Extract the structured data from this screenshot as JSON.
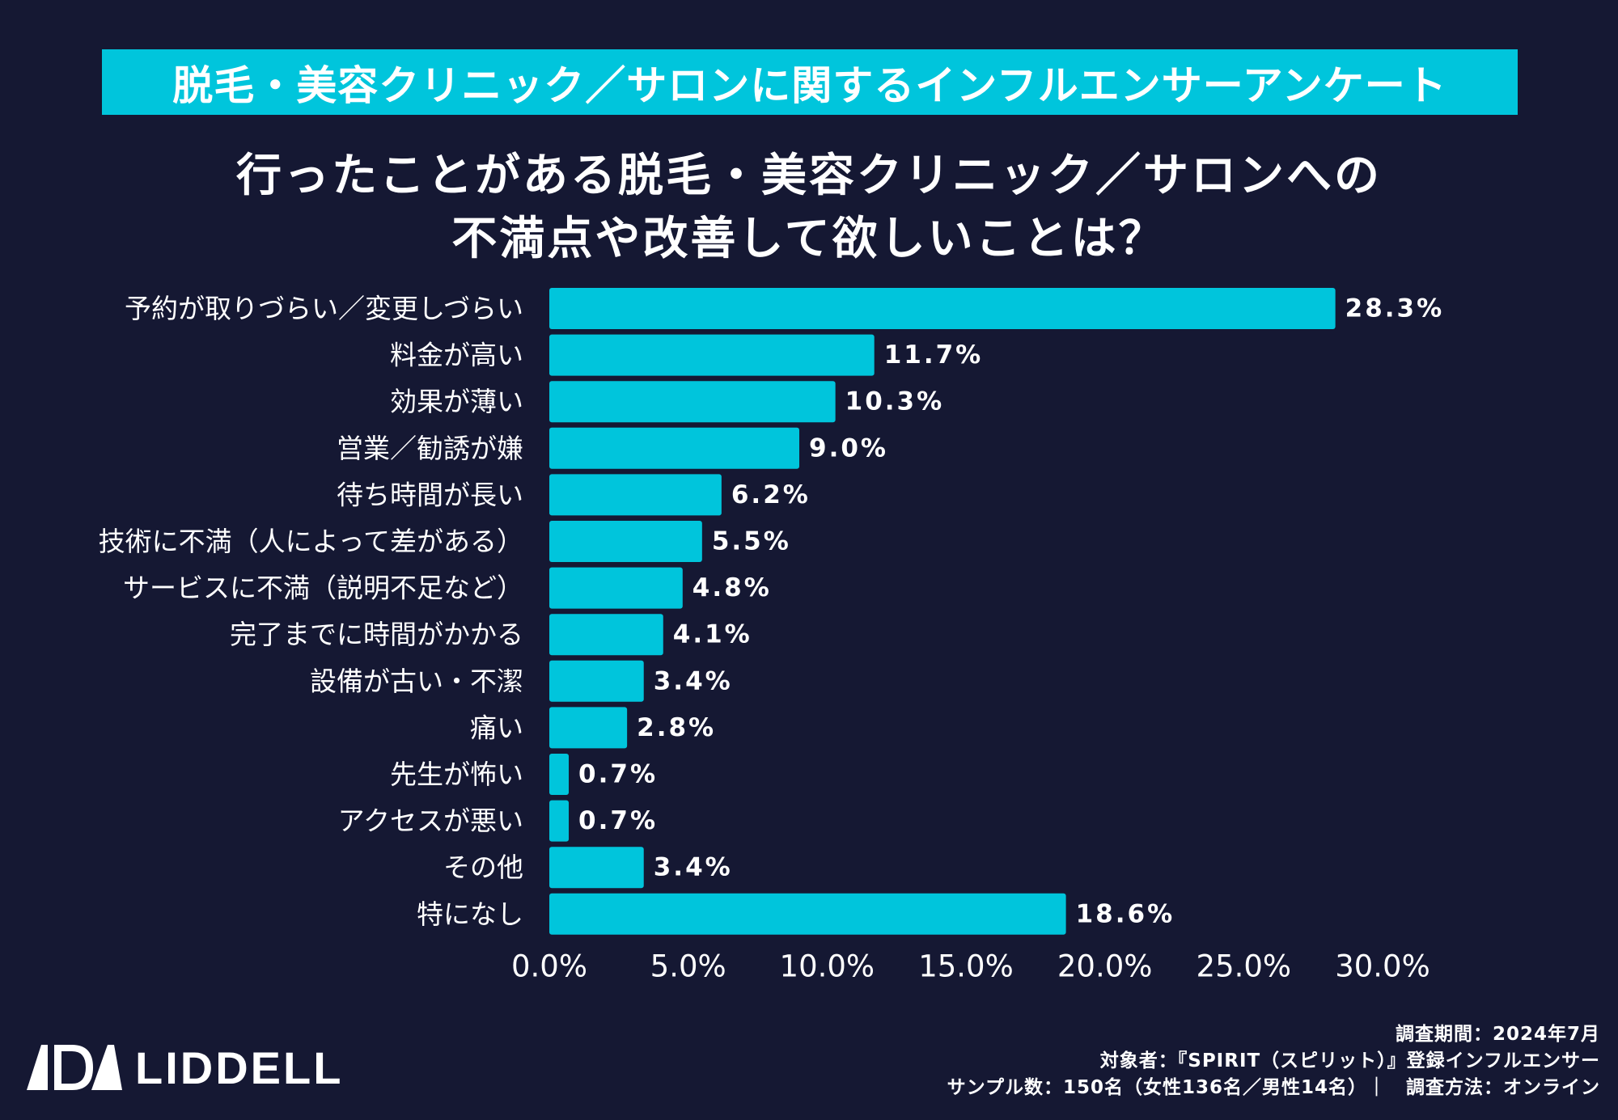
{
  "banner": {
    "text": "脱毛・美容クリニック／サロンに関するインフルエンサーアンケート"
  },
  "title": {
    "line1": "行ったことがある脱毛・美容クリニック／サロンへの",
    "line2": "不満点や改善して欲しいことは？"
  },
  "colors": {
    "background": "#151833",
    "accent": "#00c5dc",
    "text": "#ffffff"
  },
  "chart_data": {
    "type": "bar",
    "orientation": "horizontal",
    "title": "行ったことがある脱毛・美容クリニック／サロンへの不満点や改善して欲しいことは？",
    "categories": [
      "予約が取りづらい／変更しづらい",
      "料金が高い",
      "効果が薄い",
      "営業／勧誘が嫌",
      "待ち時間が長い",
      "技術に不満（人によって差がある）",
      "サービスに不満（説明不足など）",
      "完了までに時間がかかる",
      "設備が古い・不潔",
      "痛い",
      "先生が怖い",
      "アクセスが悪い",
      "その他",
      "特になし"
    ],
    "values": [
      28.3,
      11.7,
      10.3,
      9.0,
      6.2,
      5.5,
      4.8,
      4.1,
      3.4,
      2.8,
      0.7,
      0.7,
      3.4,
      18.6
    ],
    "value_labels": [
      "28.3%",
      "11.7%",
      "10.3%",
      "9.0%",
      "6.2%",
      "5.5%",
      "4.8%",
      "4.1%",
      "3.4%",
      "2.8%",
      "0.7%",
      "0.7%",
      "3.4%",
      "18.6%"
    ],
    "xlim": [
      0,
      30
    ],
    "xticks": [
      0,
      5,
      10,
      15,
      20,
      25,
      30
    ],
    "xtick_labels": [
      "0.0%",
      "5.0%",
      "10.0%",
      "15.0%",
      "20.0%",
      "25.0%",
      "30.0%"
    ],
    "xlabel": "",
    "ylabel": "",
    "grid": false,
    "legend": "none"
  },
  "logo": {
    "text": "LIDDELL",
    "icon": "liddell-logo-icon"
  },
  "footer": {
    "line1": "調査期間：2024年7月",
    "line2": "対象者：『SPIRIT（スピリット）』登録インフルエンサー",
    "line3": "サンプル数：150名（女性136名／男性14名）｜　調査方法：オンライン"
  }
}
